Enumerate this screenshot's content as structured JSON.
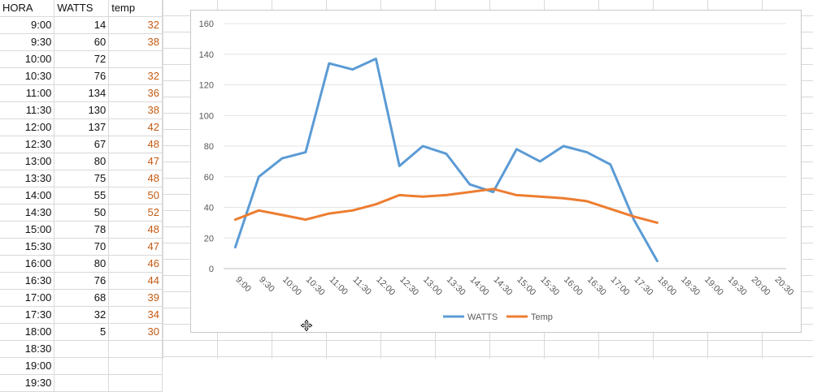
{
  "sheet": {
    "headers": [
      "HORA",
      "WATTS",
      "temp"
    ],
    "rows": [
      [
        "9:00",
        "14",
        "32"
      ],
      [
        "9:30",
        "60",
        "38"
      ],
      [
        "10:00",
        "72",
        ""
      ],
      [
        "10:30",
        "76",
        "32"
      ],
      [
        "11:00",
        "134",
        "36"
      ],
      [
        "11:30",
        "130",
        "38"
      ],
      [
        "12:00",
        "137",
        "42"
      ],
      [
        "12:30",
        "67",
        "48"
      ],
      [
        "13:00",
        "80",
        "47"
      ],
      [
        "13:30",
        "75",
        "48"
      ],
      [
        "14:00",
        "55",
        "50"
      ],
      [
        "14:30",
        "50",
        "52"
      ],
      [
        "15:00",
        "78",
        "48"
      ],
      [
        "15:30",
        "70",
        "47"
      ],
      [
        "16:00",
        "80",
        "46"
      ],
      [
        "16:30",
        "76",
        "44"
      ],
      [
        "17:00",
        "68",
        "39"
      ],
      [
        "17:30",
        "32",
        "34"
      ],
      [
        "18:00",
        "5",
        "30"
      ],
      [
        "18:30",
        "",
        ""
      ],
      [
        "19:00",
        "",
        ""
      ],
      [
        "19:30",
        "",
        ""
      ]
    ]
  },
  "chart_data": {
    "type": "line",
    "categories": [
      "9:00",
      "9:30",
      "10:00",
      "10:30",
      "11:00",
      "11:30",
      "12:00",
      "12:30",
      "13:00",
      "13:30",
      "14:00",
      "14:30",
      "15:00",
      "15:30",
      "16:00",
      "16:30",
      "17:00",
      "17:30",
      "18:00",
      "18:30",
      "19:00",
      "19:30",
      "20:00",
      "20:30"
    ],
    "series": [
      {
        "name": "WATTS",
        "color": "#5b9bd5",
        "values": [
          14,
          60,
          72,
          76,
          134,
          130,
          137,
          67,
          80,
          75,
          55,
          50,
          78,
          70,
          80,
          76,
          68,
          32,
          5,
          null,
          null,
          null,
          null,
          null
        ]
      },
      {
        "name": "Temp",
        "color": "#ed7d31",
        "values": [
          32,
          38,
          35,
          32,
          36,
          38,
          42,
          48,
          47,
          48,
          50,
          52,
          48,
          47,
          46,
          44,
          39,
          34,
          30,
          null,
          null,
          null,
          null,
          null
        ]
      }
    ],
    "yticks": [
      "0",
      "20",
      "40",
      "60",
      "80",
      "100",
      "120",
      "140",
      "160"
    ],
    "ylim": [
      0,
      160
    ],
    "grid": true,
    "legend": "bottom"
  }
}
